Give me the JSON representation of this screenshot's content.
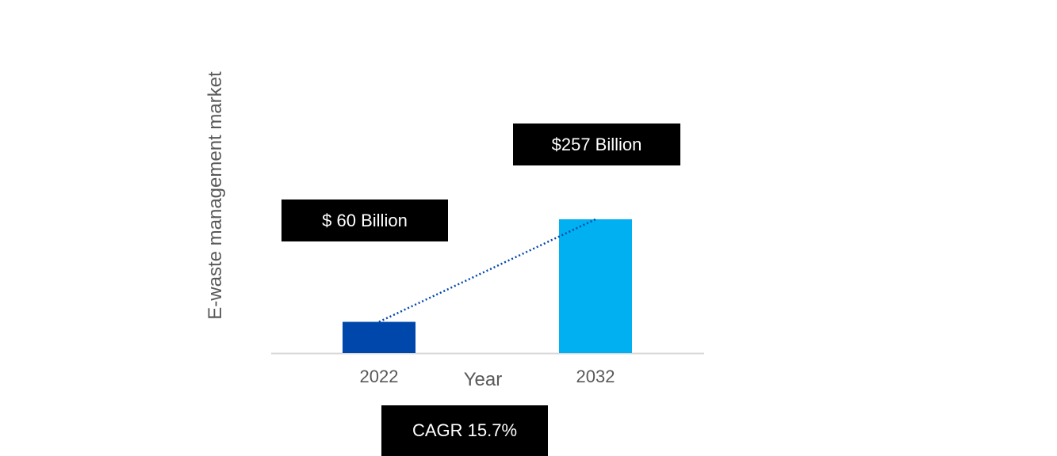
{
  "chart_data": {
    "type": "bar",
    "categories": [
      "2022",
      "2032"
    ],
    "values": [
      60,
      257
    ],
    "value_labels": [
      "$ 60 Billion",
      "$257 Billion"
    ],
    "xlabel": "Year",
    "ylabel": "E-waste management market",
    "annotation": "CAGR 15.7%",
    "trendline": "dotted",
    "grid": false,
    "colors": [
      "#0047AB",
      "#00B0F0"
    ],
    "trendline_color": "#0047AB"
  }
}
